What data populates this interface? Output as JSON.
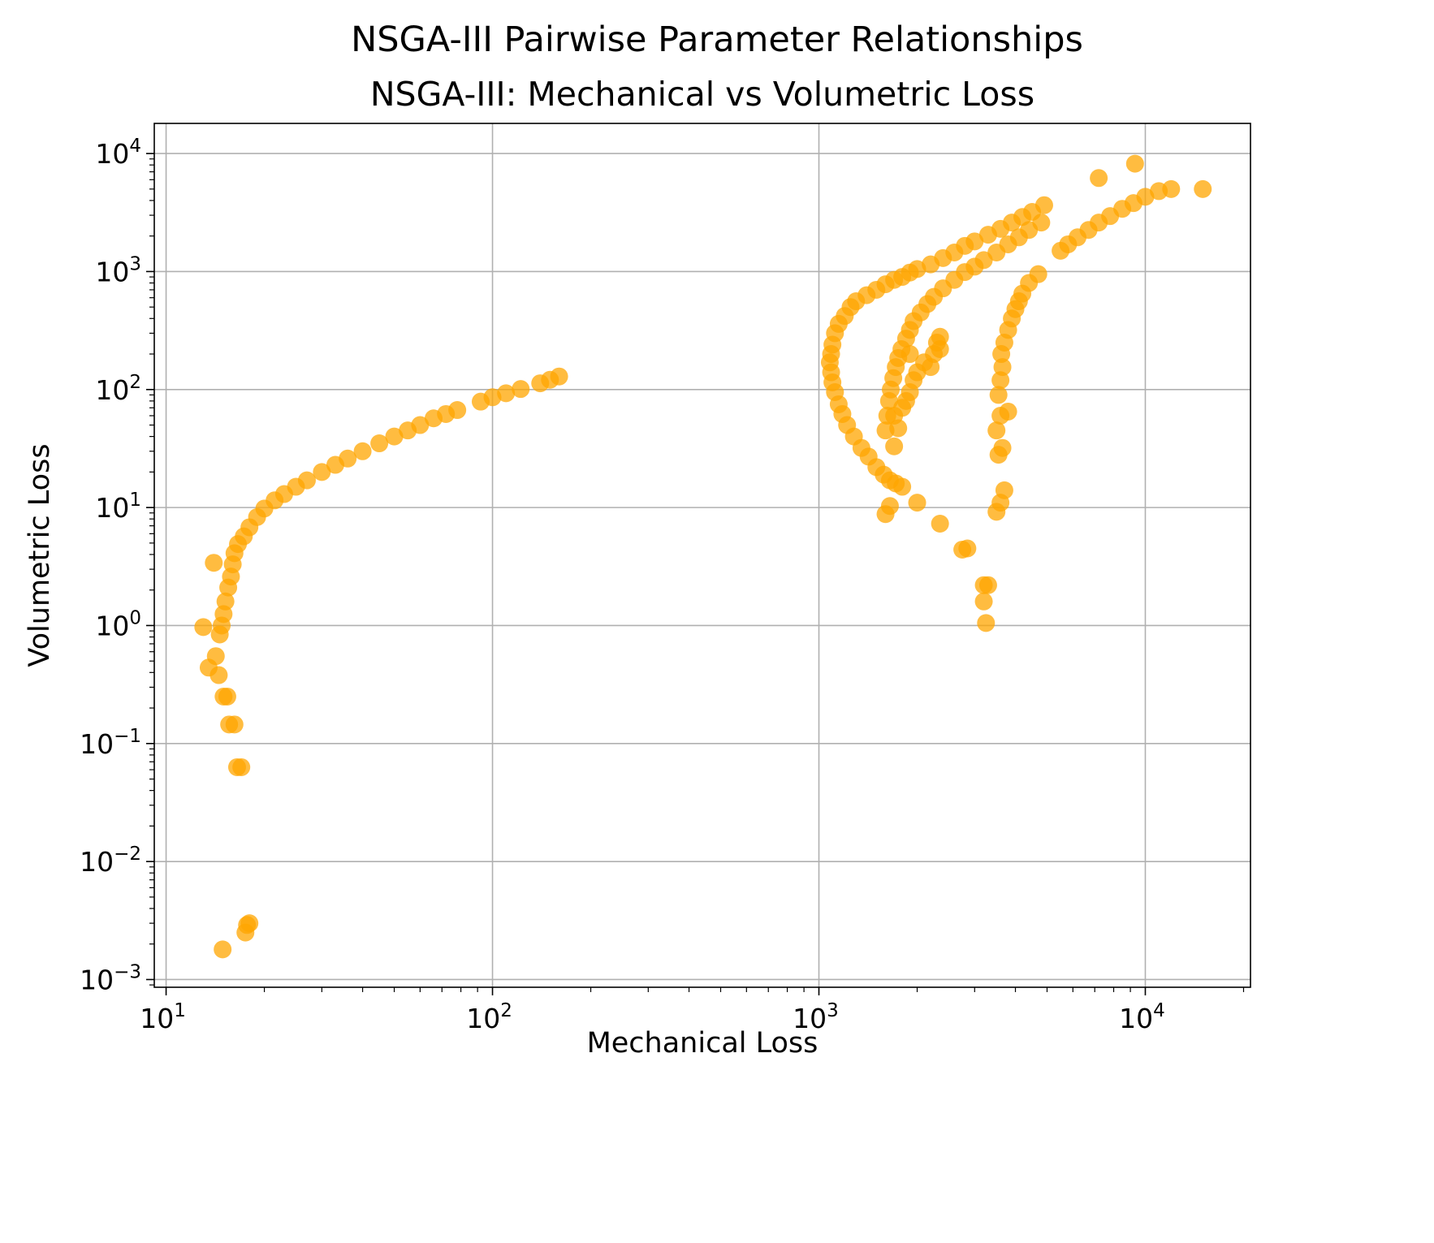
{
  "suptitle": "NSGA-III Pairwise Parameter Relationships",
  "chart_data": {
    "type": "scatter",
    "title": "NSGA-III: Mechanical vs Volumetric Loss",
    "xlabel": "Mechanical Loss",
    "ylabel": "Volumetric Loss",
    "xscale": "log",
    "yscale": "log",
    "xlim": [
      9.2,
      21000
    ],
    "ylim": [
      0.00086,
      18000
    ],
    "grid": true,
    "point_color": "#FFA500",
    "x_ticks": [
      {
        "value": 10,
        "base": "10",
        "exp": "1"
      },
      {
        "value": 100,
        "base": "10",
        "exp": "2"
      },
      {
        "value": 1000,
        "base": "10",
        "exp": "3"
      },
      {
        "value": 10000,
        "base": "10",
        "exp": "4"
      }
    ],
    "y_ticks": [
      {
        "value": 0.001,
        "base": "10",
        "exp": "−3"
      },
      {
        "value": 0.01,
        "base": "10",
        "exp": "−2"
      },
      {
        "value": 0.1,
        "base": "10",
        "exp": "−1"
      },
      {
        "value": 1,
        "base": "10",
        "exp": "0"
      },
      {
        "value": 10,
        "base": "10",
        "exp": "1"
      },
      {
        "value": 100,
        "base": "10",
        "exp": "2"
      },
      {
        "value": 1000,
        "base": "10",
        "exp": "3"
      },
      {
        "value": 10000,
        "base": "10",
        "exp": "4"
      }
    ],
    "series": [
      {
        "points": [
          [
            13.0,
            0.97
          ],
          [
            13.5,
            0.44
          ],
          [
            14.0,
            3.4
          ],
          [
            14.2,
            0.55
          ],
          [
            14.5,
            0.38
          ],
          [
            14.6,
            0.84
          ],
          [
            14.8,
            1.0
          ],
          [
            15.0,
            1.25
          ],
          [
            15.0,
            0.25
          ],
          [
            15.4,
            0.25
          ],
          [
            15.2,
            1.6
          ],
          [
            15.5,
            2.1
          ],
          [
            15.6,
            0.145
          ],
          [
            15.8,
            2.6
          ],
          [
            16.0,
            3.3
          ],
          [
            16.2,
            0.145
          ],
          [
            16.2,
            4.1
          ],
          [
            16.5,
            0.063
          ],
          [
            16.6,
            4.9
          ],
          [
            17.0,
            0.063
          ],
          [
            17.3,
            5.7
          ],
          [
            18.0,
            6.8
          ],
          [
            19.0,
            8.3
          ],
          [
            20.0,
            9.8
          ],
          [
            21.5,
            11.5
          ],
          [
            23.0,
            13.0
          ],
          [
            25.0,
            15.0
          ],
          [
            27.0,
            17.0
          ],
          [
            30.0,
            20.0
          ],
          [
            33.0,
            23.0
          ],
          [
            36.0,
            26.0
          ],
          [
            40.0,
            30.0
          ],
          [
            45.0,
            35.0
          ],
          [
            50.0,
            40.0
          ],
          [
            55.0,
            45.0
          ],
          [
            60.0,
            50.0
          ],
          [
            66.0,
            57.0
          ],
          [
            72.0,
            62.0
          ],
          [
            78.0,
            67.0
          ],
          [
            92.0,
            79.0
          ],
          [
            100.0,
            86.0
          ],
          [
            110.0,
            93.0
          ],
          [
            122.0,
            101.0
          ],
          [
            140.0,
            113.0
          ],
          [
            150.0,
            121.0
          ],
          [
            160.0,
            129.0
          ],
          [
            14.9,
            0.0018
          ],
          [
            17.5,
            0.0025
          ],
          [
            17.7,
            0.0029
          ],
          [
            18.0,
            0.003
          ]
        ]
      },
      {
        "points": [
          [
            1250,
            500
          ],
          [
            1200,
            420
          ],
          [
            1150,
            360
          ],
          [
            1120,
            300
          ],
          [
            1100,
            240
          ],
          [
            1090,
            200
          ],
          [
            1080,
            170
          ],
          [
            1090,
            140
          ],
          [
            1100,
            115
          ],
          [
            1120,
            95
          ],
          [
            1150,
            75
          ],
          [
            1180,
            62
          ],
          [
            1220,
            50
          ],
          [
            1280,
            40
          ],
          [
            1350,
            32
          ],
          [
            1420,
            27
          ],
          [
            1500,
            22
          ],
          [
            1580,
            19
          ],
          [
            1650,
            17
          ],
          [
            1720,
            16
          ],
          [
            1800,
            15
          ],
          [
            1600,
            8.8
          ],
          [
            1650,
            10.3
          ],
          [
            2000,
            11.0
          ],
          [
            2350,
            7.3
          ],
          [
            2750,
            4.4
          ],
          [
            2850,
            4.5
          ],
          [
            1300,
            560
          ],
          [
            1400,
            630
          ],
          [
            1500,
            700
          ],
          [
            1600,
            780
          ],
          [
            1700,
            850
          ],
          [
            1800,
            900
          ],
          [
            1900,
            980
          ],
          [
            2000,
            1050
          ],
          [
            2200,
            1150
          ],
          [
            2400,
            1300
          ],
          [
            2600,
            1450
          ],
          [
            2800,
            1650
          ],
          [
            3000,
            1800
          ],
          [
            3300,
            2050
          ],
          [
            3600,
            2300
          ],
          [
            3900,
            2600
          ],
          [
            4200,
            2900
          ],
          [
            4500,
            3200
          ],
          [
            4900,
            3650
          ]
        ]
      },
      {
        "points": [
          [
            1600,
            45
          ],
          [
            1620,
            60
          ],
          [
            1640,
            80
          ],
          [
            1660,
            100
          ],
          [
            1690,
            125
          ],
          [
            1720,
            155
          ],
          [
            1750,
            185
          ],
          [
            1790,
            220
          ],
          [
            1850,
            270
          ],
          [
            1900,
            320
          ],
          [
            1950,
            380
          ],
          [
            2050,
            450
          ],
          [
            2150,
            530
          ],
          [
            2250,
            610
          ],
          [
            2400,
            720
          ],
          [
            2600,
            850
          ],
          [
            2800,
            990
          ],
          [
            3000,
            1100
          ],
          [
            3200,
            1250
          ],
          [
            3500,
            1450
          ],
          [
            3800,
            1700
          ],
          [
            4100,
            1950
          ],
          [
            4400,
            2250
          ],
          [
            4800,
            2600
          ],
          [
            1700,
            33
          ],
          [
            1750,
            47
          ],
          [
            1700,
            60
          ],
          [
            1800,
            70
          ],
          [
            1850,
            80
          ],
          [
            1900,
            95
          ],
          [
            1950,
            120
          ],
          [
            2000,
            140
          ],
          [
            2100,
            170
          ],
          [
            2200,
            155
          ],
          [
            2250,
            200
          ],
          [
            2300,
            250
          ],
          [
            2350,
            280
          ],
          [
            2350,
            220
          ],
          [
            1900,
            200
          ]
        ]
      },
      {
        "points": [
          [
            3200,
            2.2
          ],
          [
            3300,
            2.2
          ],
          [
            3200,
            1.6
          ],
          [
            3250,
            1.05
          ],
          [
            3500,
            9.2
          ],
          [
            3600,
            11.0
          ],
          [
            3700,
            14.0
          ],
          [
            3550,
            28.0
          ],
          [
            3650,
            32.0
          ],
          [
            3500,
            45.0
          ],
          [
            3600,
            60.0
          ],
          [
            3800,
            65.0
          ],
          [
            3550,
            90.0
          ],
          [
            3600,
            120.0
          ],
          [
            3650,
            155.0
          ],
          [
            3620,
            200.0
          ],
          [
            3700,
            250.0
          ],
          [
            3800,
            320.0
          ],
          [
            3900,
            400.0
          ],
          [
            4000,
            480.0
          ],
          [
            4100,
            560.0
          ],
          [
            4200,
            650.0
          ],
          [
            4400,
            800.0
          ],
          [
            4700,
            950.0
          ]
        ]
      },
      {
        "points": [
          [
            5500,
            1500
          ],
          [
            5800,
            1700
          ],
          [
            6200,
            1950
          ],
          [
            6700,
            2250
          ],
          [
            7200,
            2600
          ],
          [
            7800,
            2950
          ],
          [
            8500,
            3400
          ],
          [
            9200,
            3800
          ],
          [
            10000,
            4300
          ],
          [
            11000,
            4800
          ],
          [
            12000,
            5000
          ],
          [
            15000,
            5000
          ],
          [
            7200,
            6200
          ],
          [
            9300,
            8200
          ]
        ]
      }
    ]
  }
}
